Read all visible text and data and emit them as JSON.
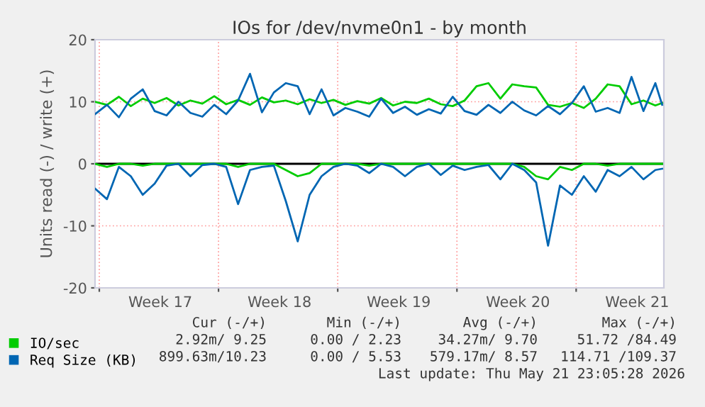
{
  "chart_data": {
    "type": "line",
    "title": "IOs for /dev/nvme0n1 - by month",
    "ylabel": "Units read (-) / write (+)",
    "x": [
      "2026-04-19T18:00",
      "2026-04-20T10:48",
      "2026-04-21T03:36",
      "2026-04-21T20:24",
      "2026-04-22T13:12",
      "2026-04-23T06:00",
      "2026-04-23T22:48",
      "2026-04-24T15:36",
      "2026-04-25T08:24",
      "2026-04-26T01:12",
      "2026-04-26T18:00",
      "2026-04-27T10:48",
      "2026-04-28T03:36",
      "2026-04-28T20:24",
      "2026-04-29T13:12",
      "2026-04-30T06:00",
      "2026-04-30T22:48",
      "2026-05-01T15:36",
      "2026-05-02T08:24",
      "2026-05-03T01:12",
      "2026-05-03T18:00",
      "2026-05-04T10:48",
      "2026-05-05T03:36",
      "2026-05-05T20:24",
      "2026-05-06T13:12",
      "2026-05-07T06:00",
      "2026-05-07T22:48",
      "2026-05-08T15:36",
      "2026-05-09T08:24",
      "2026-05-10T01:12",
      "2026-05-10T18:00",
      "2026-05-11T10:48",
      "2026-05-12T03:36",
      "2026-05-12T20:24",
      "2026-05-13T13:12",
      "2026-05-14T06:00",
      "2026-05-14T22:48",
      "2026-05-15T15:36",
      "2026-05-16T08:24",
      "2026-05-17T01:12",
      "2026-05-17T18:00",
      "2026-05-18T10:48",
      "2026-05-19T03:36",
      "2026-05-19T20:24",
      "2026-05-20T13:12",
      "2026-05-21T06:00",
      "2026-05-21T22:48",
      "2026-05-22T15:36",
      "2026-05-23T01:12"
    ],
    "series": [
      {
        "name": "IO/sec",
        "color": "#00cc00",
        "values": [
          10,
          9.5,
          10.8,
          9.3,
          10.5,
          9.8,
          10.6,
          9.4,
          10.2,
          9.7,
          10.9,
          9.6,
          10.3,
          9.5,
          10.7,
          9.9,
          10.2,
          9.6,
          10.4,
          9.8,
          10.3,
          9.5,
          10.1,
          9.7,
          10.6,
          9.4,
          10,
          9.8,
          10.5,
          9.6,
          9.3,
          10.2,
          12.5,
          13,
          10.5,
          12.8,
          12.5,
          12.3,
          9.5,
          9.2,
          9.8,
          9,
          10.5,
          12.8,
          12.5,
          9.6,
          10.2,
          9.4,
          9.8
        ]
      },
      {
        "name": "Req Size (KB)",
        "color": "#0066b3",
        "values": [
          8,
          9.5,
          7.5,
          10.5,
          12,
          8.5,
          7.8,
          10,
          8.2,
          7.6,
          9.5,
          8,
          10.2,
          14.5,
          8.3,
          11.5,
          13,
          12.5,
          8,
          12,
          7.8,
          9,
          8.4,
          7.6,
          10.5,
          8.2,
          9.2,
          7.9,
          8.8,
          8.1,
          10.8,
          8.5,
          7.9,
          9.5,
          8.2,
          10,
          8.6,
          7.8,
          9.3,
          8,
          9.8,
          12.5,
          8.4,
          9,
          8.2,
          14,
          8.5,
          13,
          9.5
        ]
      },
      {
        "color": "#00cc00",
        "values": [
          0,
          -0.5,
          0,
          0,
          -0.3,
          0,
          0,
          0,
          0,
          0,
          0,
          0,
          -0.5,
          0,
          0,
          0,
          -1,
          -2,
          -1.5,
          0,
          0,
          0,
          0,
          -0.3,
          0,
          0,
          0,
          0,
          0,
          0,
          0,
          0,
          0,
          0,
          0,
          0,
          -0.5,
          -2,
          -2.5,
          -0.5,
          -1,
          0,
          0,
          -0.3,
          0,
          0,
          0,
          0,
          0
        ]
      },
      {
        "color": "#0066b3",
        "values": [
          -4,
          -5.7,
          -0.5,
          -2,
          -5,
          -3.2,
          -0.3,
          0,
          -2,
          -0.2,
          0,
          -0.5,
          -6.5,
          -1,
          -0.5,
          -0.3,
          -6,
          -12.5,
          -5,
          -2,
          -0.5,
          0,
          -0.3,
          -1.5,
          0,
          -0.5,
          -2,
          -0.5,
          0,
          -1.8,
          -0.3,
          -1,
          -0.5,
          -0.2,
          -2.5,
          0,
          -1,
          -3,
          -13.2,
          -3.5,
          -5,
          -2,
          -4.5,
          -1,
          -2,
          -0.5,
          -2.5,
          -1,
          -0.8
        ]
      }
    ],
    "xlim": [
      "2026-04-19T18:00",
      "2026-05-23T03:36"
    ],
    "xticks": [
      {
        "value": "2026-04-20T00:00",
        "label": null
      },
      {
        "value": "2026-04-23T14:00",
        "label": "Week 17"
      },
      {
        "value": "2026-04-27T00:00",
        "label": null
      },
      {
        "value": "2026-04-30T14:00",
        "label": "Week 18"
      },
      {
        "value": "2026-05-04T00:00",
        "label": null
      },
      {
        "value": "2026-05-07T14:00",
        "label": "Week 19"
      },
      {
        "value": "2026-05-11T00:00",
        "label": null
      },
      {
        "value": "2026-05-14T14:00",
        "label": "Week 20"
      },
      {
        "value": "2026-05-18T00:00",
        "label": null
      },
      {
        "value": "2026-05-21T14:00",
        "label": "Week 21"
      }
    ],
    "ylim": [
      -20,
      20
    ],
    "yticks": [
      -20,
      -10,
      0,
      10,
      20
    ],
    "ref_lines": [
      {
        "axis": "y",
        "value": 0,
        "color": "#000000"
      }
    ],
    "grid": true,
    "legend": "bottom",
    "line_style": "solid",
    "marker": "none",
    "annotations": [
      "Cur (-/+)",
      "Min (-/+)",
      "Avg (-/+)",
      "Max (-/+)",
      "2.92m/ 9.25",
      "0.00 / 2.23",
      "34.27m/ 9.70",
      "51.72 /84.49",
      "899.63m/10.23",
      "0.00 / 5.53",
      "579.17m/ 8.57",
      "114.71 /109.37",
      "Last update: Thu May 21 23:05:28 2026"
    ]
  }
}
